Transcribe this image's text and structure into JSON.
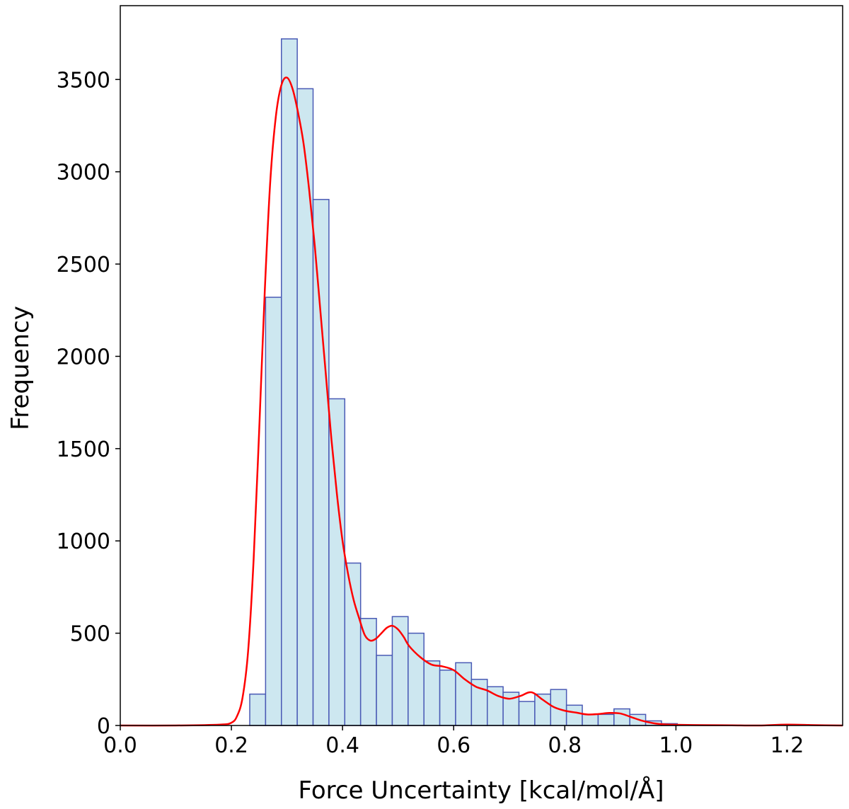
{
  "chart_data": {
    "type": "bar",
    "subtype": "histogram-with-kde",
    "xlabel": "Force Uncertainty [kcal/mol/Å]",
    "ylabel": "Frequency",
    "xlim": [
      0.0,
      1.3
    ],
    "ylim": [
      0,
      3900
    ],
    "xticks": [
      "0.0",
      "0.2",
      "0.4",
      "0.6",
      "0.8",
      "1.0",
      "1.2"
    ],
    "yticks": [
      "0",
      "500",
      "1000",
      "1500",
      "2000",
      "2500",
      "3000",
      "3500"
    ],
    "grid": false,
    "legend": "none",
    "bin_width": 0.0285,
    "bins": [
      {
        "x0": 0.233,
        "value": 170
      },
      {
        "x0": 0.2615,
        "value": 2320
      },
      {
        "x0": 0.29,
        "value": 3720
      },
      {
        "x0": 0.3185,
        "value": 3450
      },
      {
        "x0": 0.347,
        "value": 2850
      },
      {
        "x0": 0.3755,
        "value": 1770
      },
      {
        "x0": 0.404,
        "value": 880
      },
      {
        "x0": 0.4325,
        "value": 580
      },
      {
        "x0": 0.461,
        "value": 380
      },
      {
        "x0": 0.4895,
        "value": 590
      },
      {
        "x0": 0.518,
        "value": 500
      },
      {
        "x0": 0.5465,
        "value": 350
      },
      {
        "x0": 0.575,
        "value": 300
      },
      {
        "x0": 0.6035,
        "value": 340
      },
      {
        "x0": 0.632,
        "value": 250
      },
      {
        "x0": 0.6605,
        "value": 210
      },
      {
        "x0": 0.689,
        "value": 180
      },
      {
        "x0": 0.7175,
        "value": 130
      },
      {
        "x0": 0.746,
        "value": 170
      },
      {
        "x0": 0.7745,
        "value": 195
      },
      {
        "x0": 0.803,
        "value": 110
      },
      {
        "x0": 0.8315,
        "value": 60
      },
      {
        "x0": 0.86,
        "value": 60
      },
      {
        "x0": 0.8885,
        "value": 90
      },
      {
        "x0": 0.917,
        "value": 60
      },
      {
        "x0": 0.9455,
        "value": 25
      },
      {
        "x0": 0.974,
        "value": 10
      }
    ],
    "kde": {
      "x": [
        0.0,
        0.1,
        0.18,
        0.2,
        0.21,
        0.22,
        0.23,
        0.24,
        0.25,
        0.26,
        0.27,
        0.28,
        0.29,
        0.3,
        0.31,
        0.32,
        0.33,
        0.34,
        0.35,
        0.36,
        0.37,
        0.38,
        0.39,
        0.4,
        0.41,
        0.42,
        0.43,
        0.44,
        0.45,
        0.46,
        0.47,
        0.48,
        0.49,
        0.5,
        0.51,
        0.52,
        0.54,
        0.56,
        0.58,
        0.6,
        0.62,
        0.64,
        0.66,
        0.68,
        0.7,
        0.72,
        0.74,
        0.76,
        0.78,
        0.8,
        0.82,
        0.84,
        0.86,
        0.88,
        0.9,
        0.92,
        0.94,
        0.96,
        0.98,
        1.0,
        1.05,
        1.1,
        1.15,
        1.2,
        1.25,
        1.3
      ],
      "y": [
        0,
        0,
        5,
        15,
        50,
        150,
        400,
        900,
        1600,
        2350,
        2950,
        3300,
        3470,
        3510,
        3450,
        3320,
        3150,
        2900,
        2600,
        2250,
        1900,
        1550,
        1250,
        1000,
        820,
        680,
        580,
        490,
        460,
        470,
        500,
        530,
        540,
        520,
        480,
        430,
        370,
        330,
        320,
        300,
        250,
        210,
        190,
        160,
        145,
        160,
        180,
        140,
        100,
        80,
        70,
        60,
        62,
        68,
        65,
        45,
        25,
        12,
        6,
        4,
        2,
        1,
        0,
        5,
        2,
        0
      ]
    },
    "colors": {
      "bar_fill": "#cde7f0",
      "bar_edge": "#4a5ab5",
      "kde_line": "#ff0000",
      "axis": "#000000"
    }
  }
}
